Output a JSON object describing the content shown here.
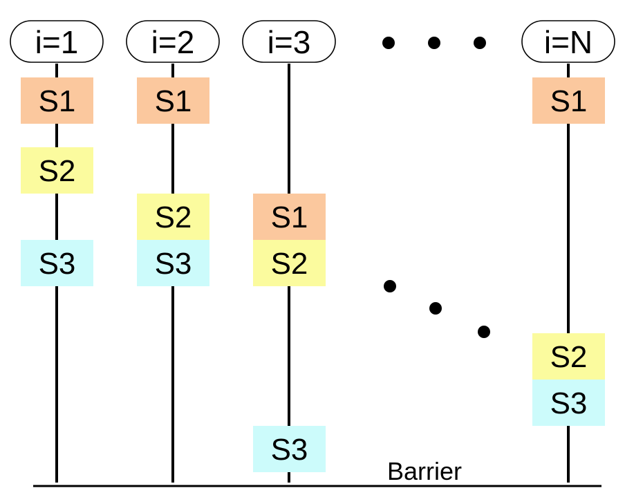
{
  "colors": {
    "S1": "#fbc89e",
    "S2": "#fbfb9e",
    "S3": "#ccfbfb"
  },
  "lanes": [
    {
      "header": "i=1",
      "steps": [
        "S1",
        "S2",
        "S3"
      ]
    },
    {
      "header": "i=2",
      "steps": [
        "S1",
        "S2",
        "S3"
      ]
    },
    {
      "header": "i=3",
      "steps": [
        "S1",
        "S2",
        "S3"
      ]
    },
    {
      "header": "i=N",
      "steps": [
        "S1",
        "S2",
        "S3"
      ]
    }
  ],
  "barrier_label": "Barrier"
}
